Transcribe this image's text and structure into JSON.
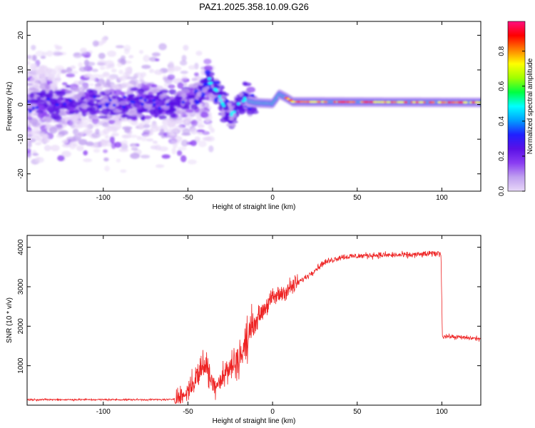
{
  "title": "PAZ1.2025.358.10.09.G26",
  "colors": {
    "axis": "#000000",
    "snr_line": "#ee2222",
    "colormap": [
      "#e8d8f8",
      "#c0a0f0",
      "#8a3cf2",
      "#5a10e6",
      "#2020ff",
      "#00a0ff",
      "#00ffff",
      "#00ff40",
      "#a0ff00",
      "#ffff00",
      "#ff8000",
      "#ff0000",
      "#ff1080"
    ]
  },
  "chart_data": [
    {
      "type": "heatmap",
      "name": "spectrogram",
      "xlabel": "Height of straight line (km)",
      "ylabel": "Frequency (Hz)",
      "xlim": [
        -145,
        123
      ],
      "ylim": [
        -25,
        24
      ],
      "xticks": [
        -100,
        -50,
        0,
        50,
        100
      ],
      "yticks": [
        -20,
        -10,
        0,
        10,
        20
      ],
      "colorbar": {
        "label": "Normalized spectral amplitude",
        "range": [
          0,
          0.97
        ],
        "ticks": [
          "0.0",
          "0.2",
          "0.4",
          "0.6",
          "0.8"
        ],
        "tick_values": [
          0.0,
          0.2,
          0.4,
          0.6,
          0.8
        ]
      },
      "ridge": [
        {
          "x": -145,
          "f": 0.5
        },
        {
          "x": -100,
          "f": 0.3
        },
        {
          "x": -60,
          "f": 0.5
        },
        {
          "x": -45,
          "f": 2
        },
        {
          "x": -38,
          "f": 7
        },
        {
          "x": -33,
          "f": 4
        },
        {
          "x": -28,
          "f": -1
        },
        {
          "x": -24,
          "f": -3
        },
        {
          "x": -18,
          "f": 1.5
        },
        {
          "x": -10,
          "f": 0.5
        },
        {
          "x": 0,
          "f": 0.3
        },
        {
          "x": 4,
          "f": 3
        },
        {
          "x": 8,
          "f": 2
        },
        {
          "x": 12,
          "f": 0.8
        },
        {
          "x": 123,
          "f": 0.6
        }
      ]
    },
    {
      "type": "line",
      "name": "snr",
      "xlabel": "Height of straight line (km)",
      "ylabel": "SNR (10 * v/v)",
      "xlim": [
        -145,
        123
      ],
      "ylim": [
        0,
        4300
      ],
      "xticks": [
        -100,
        -50,
        0,
        50,
        100
      ],
      "yticks": [
        1000,
        2000,
        3000,
        4000
      ],
      "trend": [
        {
          "x": -145,
          "y": 140
        },
        {
          "x": -60,
          "y": 140
        },
        {
          "x": -52,
          "y": 250
        },
        {
          "x": -45,
          "y": 700
        },
        {
          "x": -40,
          "y": 1100
        },
        {
          "x": -35,
          "y": 500
        },
        {
          "x": -30,
          "y": 700
        },
        {
          "x": -25,
          "y": 950
        },
        {
          "x": -18,
          "y": 1300
        },
        {
          "x": -12,
          "y": 2000
        },
        {
          "x": -5,
          "y": 2450
        },
        {
          "x": 0,
          "y": 2700
        },
        {
          "x": 10,
          "y": 2950
        },
        {
          "x": 20,
          "y": 3250
        },
        {
          "x": 30,
          "y": 3600
        },
        {
          "x": 40,
          "y": 3750
        },
        {
          "x": 60,
          "y": 3800
        },
        {
          "x": 80,
          "y": 3800
        },
        {
          "x": 99.5,
          "y": 3850
        },
        {
          "x": 100.3,
          "y": 1750
        },
        {
          "x": 123,
          "y": 1680
        }
      ]
    }
  ]
}
